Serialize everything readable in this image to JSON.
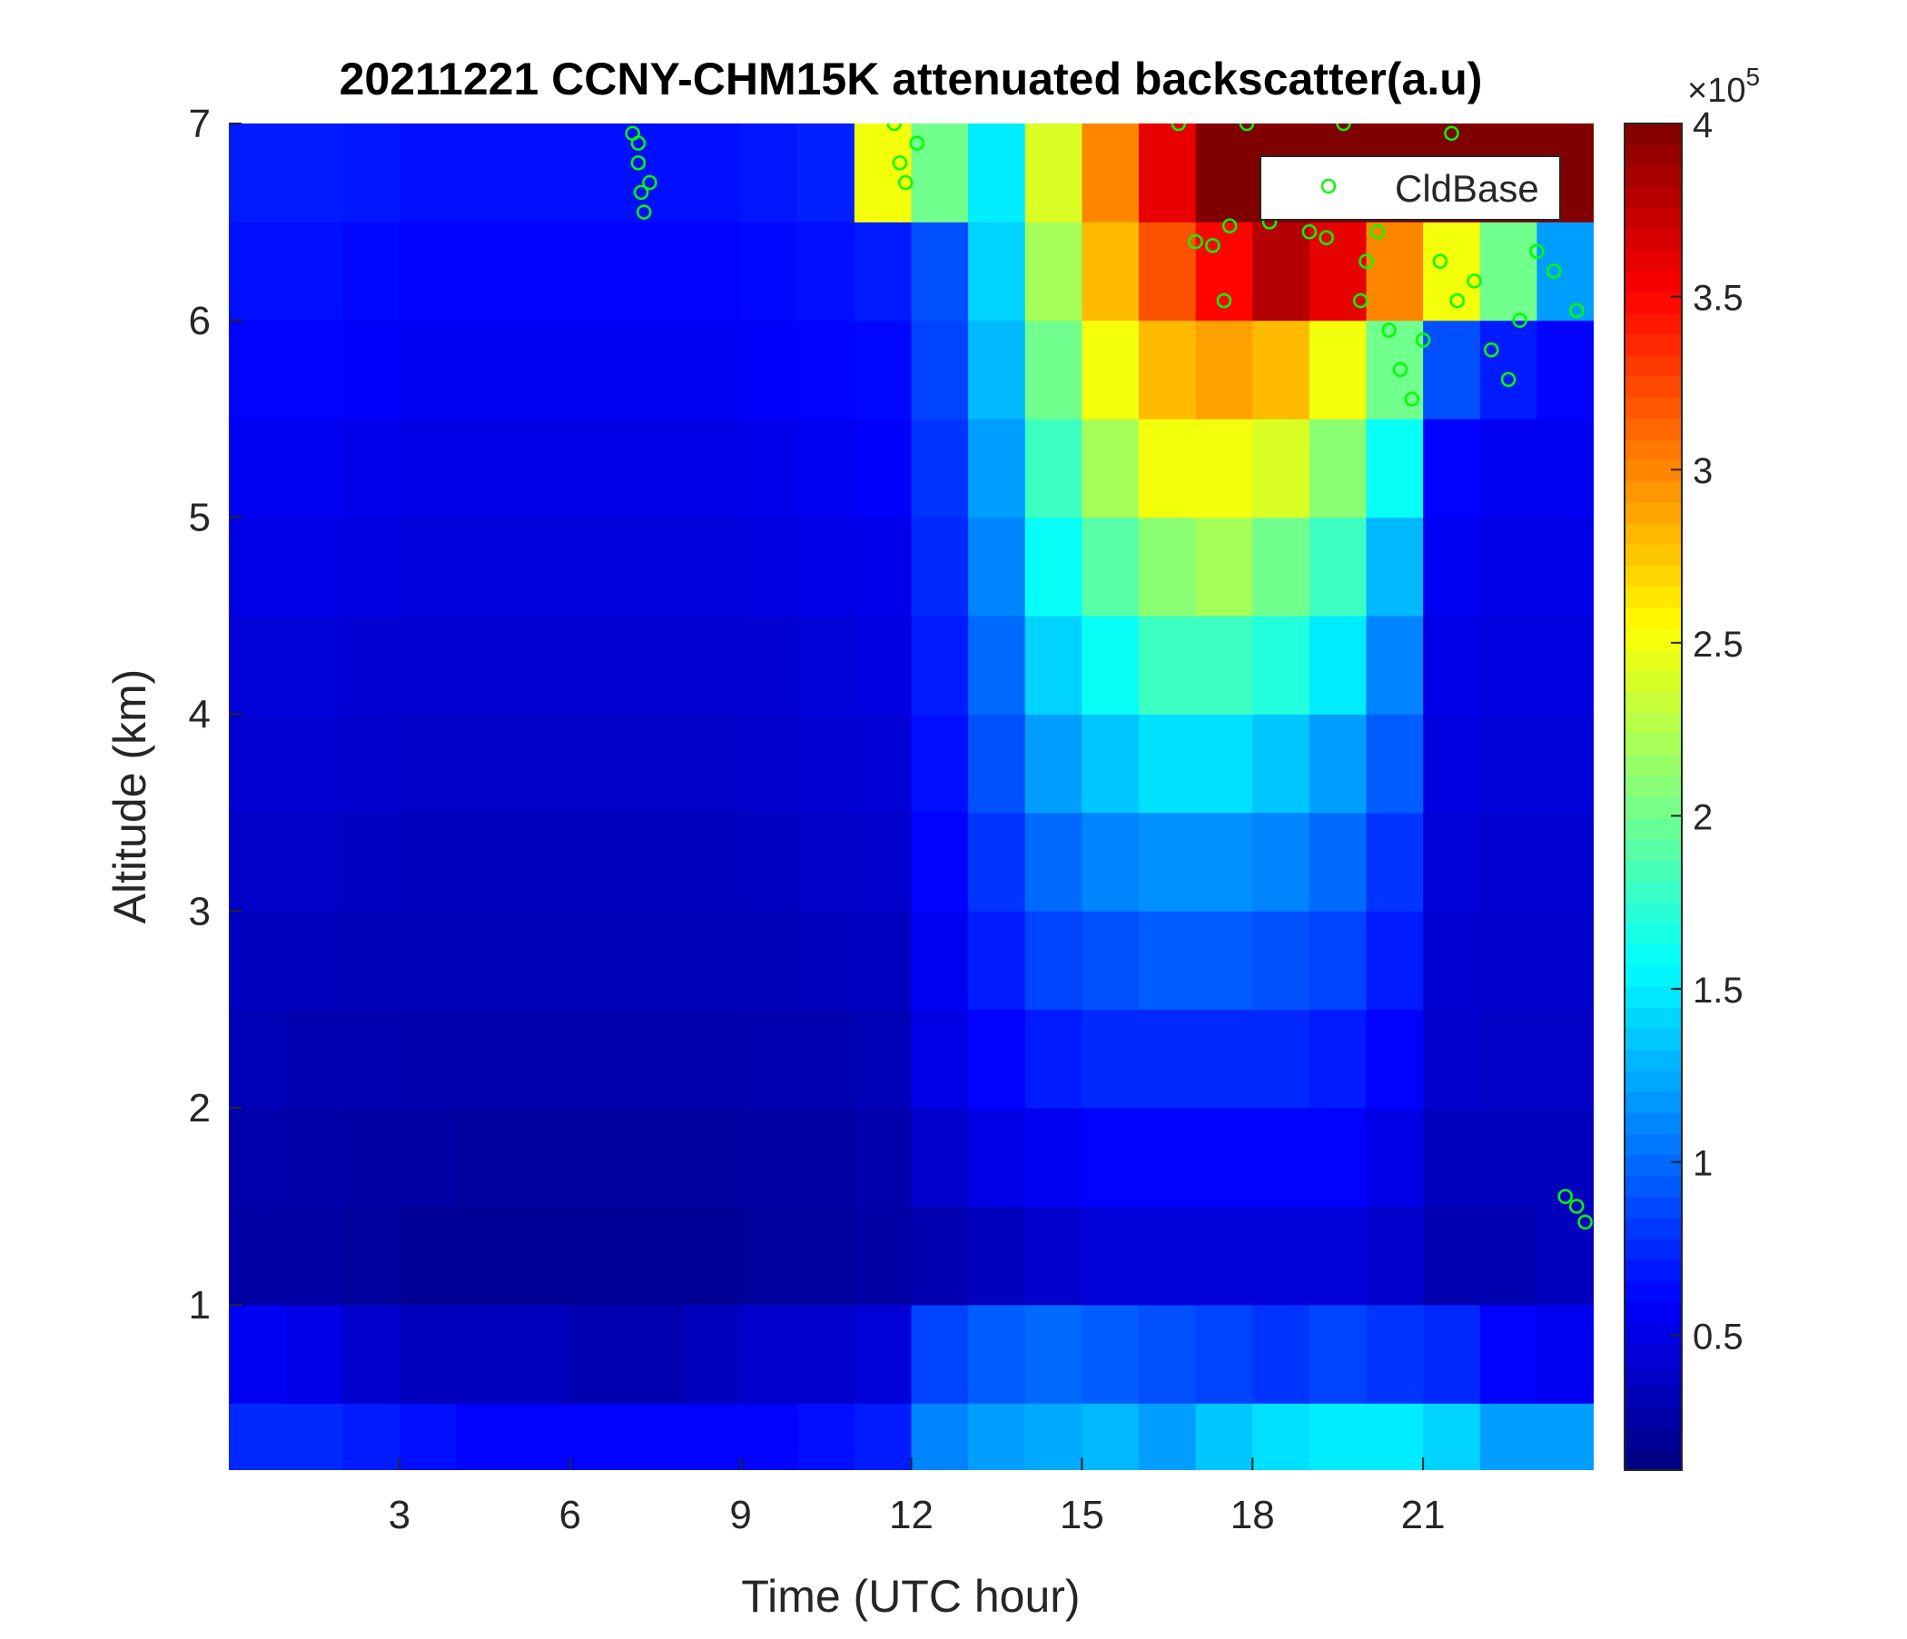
{
  "chart_data": {
    "type": "heatmap",
    "title": "20211221 CCNY-CHM15K attenuated backscatter(a.u)",
    "xlabel": "Time (UTC hour)",
    "ylabel": "Altitude (km)",
    "xlim": [
      0,
      24
    ],
    "ylim": [
      0.16,
      7
    ],
    "xticks": [
      3,
      6,
      9,
      12,
      15,
      18,
      21
    ],
    "yticks": [
      1,
      2,
      3,
      4,
      5,
      6,
      7
    ],
    "colormap": "jet",
    "colorbar": {
      "clim": [
        0.11,
        4
      ],
      "ticks": [
        0.5,
        1,
        1.5,
        2,
        2.5,
        3,
        3.5,
        4
      ],
      "multiplier": "×10",
      "exponent": 5
    },
    "x": [
      0.5,
      1.5,
      2.5,
      3.5,
      4.5,
      5.5,
      6.5,
      7.5,
      8.5,
      9.5,
      10.5,
      11.5,
      12.5,
      13.5,
      14.5,
      15.5,
      16.5,
      17.5,
      18.5,
      19.5,
      20.5,
      21.5,
      22.5,
      23.5
    ],
    "y": [
      0.25,
      0.75,
      1.25,
      1.75,
      2.25,
      2.75,
      3.25,
      3.75,
      4.25,
      4.75,
      5.25,
      5.75,
      6.25,
      6.75
    ],
    "z": [
      [
        0.75,
        0.75,
        0.7,
        0.65,
        0.6,
        0.6,
        0.6,
        0.6,
        0.6,
        0.6,
        0.65,
        0.7,
        1.1,
        1.2,
        1.25,
        1.3,
        1.2,
        1.35,
        1.45,
        1.5,
        1.5,
        1.4,
        1.2,
        1.2
      ],
      [
        0.55,
        0.5,
        0.4,
        0.35,
        0.35,
        0.35,
        0.3,
        0.3,
        0.35,
        0.4,
        0.4,
        0.45,
        0.85,
        0.95,
        1.0,
        0.95,
        0.9,
        0.85,
        0.8,
        0.85,
        0.8,
        0.75,
        0.6,
        0.55
      ],
      [
        0.25,
        0.25,
        0.22,
        0.2,
        0.2,
        0.2,
        0.2,
        0.2,
        0.2,
        0.22,
        0.22,
        0.25,
        0.3,
        0.35,
        0.4,
        0.45,
        0.45,
        0.45,
        0.45,
        0.45,
        0.4,
        0.3,
        0.3,
        0.35
      ],
      [
        0.28,
        0.27,
        0.25,
        0.25,
        0.23,
        0.23,
        0.23,
        0.23,
        0.23,
        0.25,
        0.25,
        0.28,
        0.4,
        0.5,
        0.55,
        0.6,
        0.6,
        0.6,
        0.6,
        0.6,
        0.5,
        0.35,
        0.35,
        0.35
      ],
      [
        0.32,
        0.3,
        0.3,
        0.28,
        0.28,
        0.28,
        0.28,
        0.28,
        0.28,
        0.3,
        0.3,
        0.32,
        0.5,
        0.6,
        0.7,
        0.75,
        0.75,
        0.75,
        0.75,
        0.7,
        0.6,
        0.4,
        0.38,
        0.38
      ],
      [
        0.35,
        0.35,
        0.33,
        0.32,
        0.32,
        0.32,
        0.32,
        0.32,
        0.32,
        0.33,
        0.35,
        0.36,
        0.55,
        0.7,
        0.85,
        0.9,
        0.95,
        0.95,
        0.9,
        0.85,
        0.7,
        0.42,
        0.4,
        0.4
      ],
      [
        0.38,
        0.38,
        0.36,
        0.35,
        0.35,
        0.35,
        0.35,
        0.35,
        0.35,
        0.36,
        0.38,
        0.4,
        0.6,
        0.8,
        1.0,
        1.1,
        1.15,
        1.15,
        1.1,
        1.0,
        0.8,
        0.45,
        0.42,
        0.42
      ],
      [
        0.42,
        0.42,
        0.4,
        0.38,
        0.38,
        0.38,
        0.38,
        0.38,
        0.38,
        0.4,
        0.42,
        0.44,
        0.65,
        0.9,
        1.2,
        1.35,
        1.45,
        1.45,
        1.35,
        1.2,
        0.95,
        0.48,
        0.45,
        0.45
      ],
      [
        0.45,
        0.45,
        0.43,
        0.42,
        0.42,
        0.42,
        0.42,
        0.42,
        0.42,
        0.43,
        0.45,
        0.48,
        0.7,
        1.0,
        1.4,
        1.6,
        1.8,
        1.8,
        1.7,
        1.5,
        1.1,
        0.5,
        0.48,
        0.48
      ],
      [
        0.5,
        0.5,
        0.48,
        0.46,
        0.46,
        0.46,
        0.46,
        0.46,
        0.46,
        0.48,
        0.5,
        0.52,
        0.75,
        1.1,
        1.6,
        1.9,
        2.1,
        2.2,
        2.0,
        1.8,
        1.3,
        0.55,
        0.5,
        0.5
      ],
      [
        0.55,
        0.55,
        0.52,
        0.5,
        0.5,
        0.5,
        0.5,
        0.5,
        0.5,
        0.52,
        0.55,
        0.58,
        0.8,
        1.2,
        1.8,
        2.2,
        2.5,
        2.5,
        2.4,
        2.1,
        1.6,
        0.6,
        0.55,
        0.55
      ],
      [
        0.6,
        0.6,
        0.58,
        0.55,
        0.55,
        0.55,
        0.55,
        0.55,
        0.55,
        0.58,
        0.6,
        0.62,
        0.85,
        1.3,
        2.0,
        2.5,
        2.8,
        2.9,
        2.8,
        2.5,
        2.0,
        0.9,
        0.7,
        0.6
      ],
      [
        0.65,
        0.65,
        0.62,
        0.6,
        0.6,
        0.6,
        0.6,
        0.6,
        0.6,
        0.62,
        0.65,
        0.7,
        0.9,
        1.4,
        2.2,
        2.8,
        3.2,
        3.5,
        3.8,
        3.6,
        3.0,
        2.5,
        2.0,
        1.2
      ],
      [
        0.7,
        0.7,
        0.68,
        0.65,
        0.65,
        0.65,
        0.65,
        0.65,
        0.65,
        0.68,
        0.72,
        2.5,
        2.0,
        1.5,
        2.4,
        3.0,
        3.6,
        4.0,
        4.0,
        4.0,
        4.0,
        4.0,
        4.0,
        4.0
      ]
    ],
    "series": [
      {
        "name": "CldBase",
        "type": "scatter",
        "color": "#00ff00",
        "x": [
          7.1,
          7.2,
          7.25,
          7.3,
          7.4,
          7.2,
          11.7,
          11.8,
          11.9,
          12.1,
          16.7,
          17.0,
          17.3,
          17.5,
          17.9,
          17.6,
          18.3,
          19.0,
          19.3,
          19.6,
          19.9,
          20.0,
          20.2,
          20.4,
          20.6,
          20.8,
          21.0,
          21.3,
          21.5,
          21.6,
          21.9,
          22.2,
          22.5,
          22.7,
          23.0,
          23.3,
          23.7,
          23.5,
          23.7,
          23.85
        ],
        "y": [
          6.95,
          6.8,
          6.65,
          6.55,
          6.7,
          6.9,
          7.0,
          6.8,
          6.7,
          6.9,
          7.0,
          6.4,
          6.38,
          6.1,
          7.0,
          6.48,
          6.5,
          6.45,
          6.42,
          7.0,
          6.1,
          6.3,
          6.45,
          5.95,
          5.75,
          5.6,
          5.9,
          6.3,
          6.95,
          6.1,
          6.2,
          5.85,
          5.7,
          6.0,
          6.35,
          6.25,
          6.05,
          1.55,
          1.5,
          1.42
        ]
      }
    ],
    "legend": "northeast"
  }
}
